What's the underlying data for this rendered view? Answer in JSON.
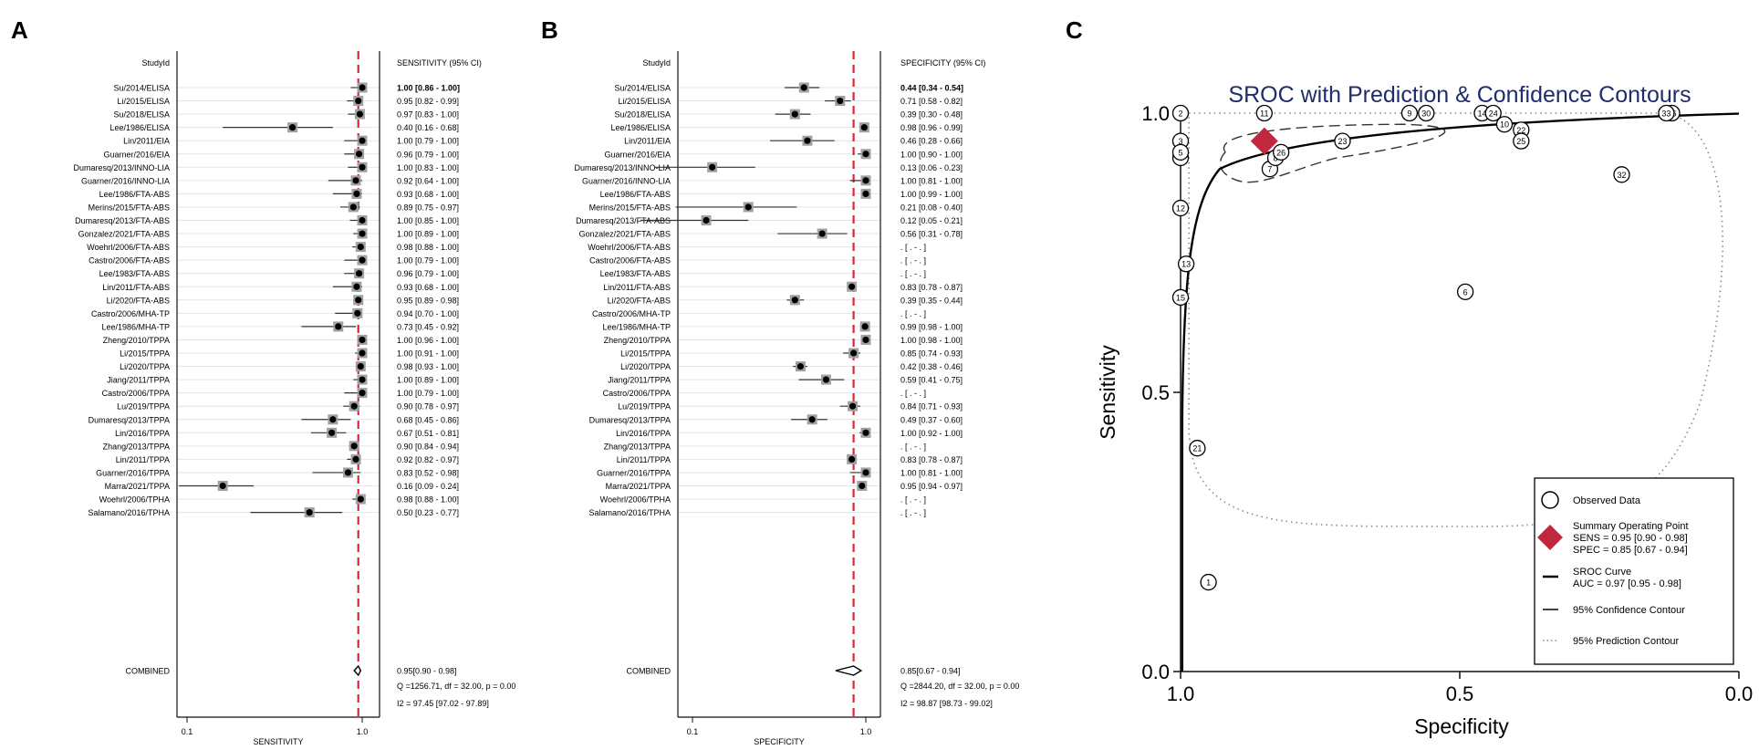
{
  "chart_data": [
    {
      "panel": "A",
      "type": "forest",
      "scale": "log",
      "xlabel": "SENSITIVITY",
      "column_header": "StudyId",
      "value_header": "SENSITIVITY (95% CI)",
      "x_ticks": [
        {
          "value": 0.1,
          "label": "0.1"
        },
        {
          "value": 1.0,
          "label": "1.0"
        }
      ],
      "summary_line": 0.95,
      "studies": [
        {
          "label": "Su/2014/ELISA",
          "est": 1.0,
          "lo": 0.86,
          "hi": 1.0,
          "text": "1.00 [0.86 - 1.00]"
        },
        {
          "label": "Li/2015/ELISA",
          "est": 0.95,
          "lo": 0.82,
          "hi": 0.99,
          "text": "0.95 [0.82 - 0.99]"
        },
        {
          "label": "Su/2018/ELISA",
          "est": 0.97,
          "lo": 0.83,
          "hi": 1.0,
          "text": "0.97 [0.83 - 1.00]"
        },
        {
          "label": "Lee/1986/ELISA",
          "est": 0.4,
          "lo": 0.16,
          "hi": 0.68,
          "text": "0.40 [0.16 - 0.68]"
        },
        {
          "label": "Lin/2011/EIA",
          "est": 1.0,
          "lo": 0.79,
          "hi": 1.0,
          "text": "1.00 [0.79 - 1.00]"
        },
        {
          "label": "Guarner/2016/EIA",
          "est": 0.96,
          "lo": 0.79,
          "hi": 1.0,
          "text": "0.96 [0.79 - 1.00]"
        },
        {
          "label": "Dumaresq/2013/INNO-LIA",
          "est": 1.0,
          "lo": 0.83,
          "hi": 1.0,
          "text": "1.00 [0.83 - 1.00]"
        },
        {
          "label": "Guarner/2016/INNO-LIA",
          "est": 0.92,
          "lo": 0.64,
          "hi": 1.0,
          "text": "0.92 [0.64 - 1.00]"
        },
        {
          "label": "Lee/1986/FTA-ABS",
          "est": 0.93,
          "lo": 0.68,
          "hi": 1.0,
          "text": "0.93 [0.68 - 1.00]"
        },
        {
          "label": "Merins/2015/FTA-ABS",
          "est": 0.89,
          "lo": 0.75,
          "hi": 0.97,
          "text": "0.89 [0.75 - 0.97]"
        },
        {
          "label": "Dumaresq/2013/FTA-ABS",
          "est": 1.0,
          "lo": 0.85,
          "hi": 1.0,
          "text": "1.00 [0.85 - 1.00]"
        },
        {
          "label": "Gonzalez/2021/FTA-ABS",
          "est": 1.0,
          "lo": 0.89,
          "hi": 1.0,
          "text": "1.00 [0.89 - 1.00]"
        },
        {
          "label": "Woehrl/2006/FTA-ABS",
          "est": 0.98,
          "lo": 0.88,
          "hi": 1.0,
          "text": "0.98 [0.88 - 1.00]"
        },
        {
          "label": "Castro/2006/FTA-ABS",
          "est": 1.0,
          "lo": 0.79,
          "hi": 1.0,
          "text": "1.00 [0.79 - 1.00]"
        },
        {
          "label": "Lee/1983/FTA-ABS",
          "est": 0.96,
          "lo": 0.79,
          "hi": 1.0,
          "text": "0.96 [0.79 - 1.00]"
        },
        {
          "label": "Lin/2011/FTA-ABS",
          "est": 0.93,
          "lo": 0.68,
          "hi": 1.0,
          "text": "0.93 [0.68 - 1.00]"
        },
        {
          "label": "Li/2020/FTA-ABS",
          "est": 0.95,
          "lo": 0.89,
          "hi": 0.98,
          "text": "0.95 [0.89 - 0.98]"
        },
        {
          "label": "Castro/2006/MHA-TP",
          "est": 0.94,
          "lo": 0.7,
          "hi": 1.0,
          "text": "0.94 [0.70 - 1.00]"
        },
        {
          "label": "Lee/1986/MHA-TP",
          "est": 0.73,
          "lo": 0.45,
          "hi": 0.92,
          "text": "0.73 [0.45 - 0.92]"
        },
        {
          "label": "Zheng/2010/TPPA",
          "est": 1.0,
          "lo": 0.96,
          "hi": 1.0,
          "text": "1.00 [0.96 - 1.00]"
        },
        {
          "label": "Li/2015/TPPA",
          "est": 1.0,
          "lo": 0.91,
          "hi": 1.0,
          "text": "1.00 [0.91 - 1.00]"
        },
        {
          "label": "Li/2020/TPPA",
          "est": 0.98,
          "lo": 0.93,
          "hi": 1.0,
          "text": "0.98 [0.93 - 1.00]"
        },
        {
          "label": "Jiang/2011/TPPA",
          "est": 1.0,
          "lo": 0.89,
          "hi": 1.0,
          "text": "1.00 [0.89 - 1.00]"
        },
        {
          "label": "Castro/2006/TPPA",
          "est": 1.0,
          "lo": 0.79,
          "hi": 1.0,
          "text": "1.00 [0.79 - 1.00]"
        },
        {
          "label": "Lu/2019/TPPA",
          "est": 0.9,
          "lo": 0.78,
          "hi": 0.97,
          "text": "0.90 [0.78 - 0.97]"
        },
        {
          "label": "Dumaresq/2013/TPPA",
          "est": 0.68,
          "lo": 0.45,
          "hi": 0.86,
          "text": "0.68 [0.45 - 0.86]"
        },
        {
          "label": "Lin/2016/TPPA",
          "est": 0.67,
          "lo": 0.51,
          "hi": 0.81,
          "text": "0.67 [0.51 - 0.81]"
        },
        {
          "label": "Zhang/2013/TPPA",
          "est": 0.9,
          "lo": 0.84,
          "hi": 0.94,
          "text": "0.90 [0.84 - 0.94]"
        },
        {
          "label": "Lin/2011/TPPA",
          "est": 0.92,
          "lo": 0.82,
          "hi": 0.97,
          "text": "0.92 [0.82 - 0.97]"
        },
        {
          "label": "Guarner/2016/TPPA",
          "est": 0.83,
          "lo": 0.52,
          "hi": 0.98,
          "text": "0.83 [0.52 - 0.98]"
        },
        {
          "label": "Marra/2021/TPPA",
          "est": 0.16,
          "lo": 0.09,
          "hi": 0.24,
          "text": "0.16 [0.09 - 0.24]"
        },
        {
          "label": "Woehrl/2006/TPHA",
          "est": 0.98,
          "lo": 0.88,
          "hi": 1.0,
          "text": "0.98 [0.88 - 1.00]"
        },
        {
          "label": "Salamano/2016/TPHA",
          "est": 0.5,
          "lo": 0.23,
          "hi": 0.77,
          "text": "0.50 [0.23 - 0.77]"
        }
      ],
      "combined": {
        "label": "COMBINED",
        "est": 0.95,
        "lo": 0.9,
        "hi": 0.98,
        "text": "0.95[0.90 - 0.98]"
      },
      "stats": [
        "Q =1256.71, df = 32.00, p = 0.00",
        "I2 = 97.45 [97.02 - 97.89]"
      ]
    },
    {
      "panel": "B",
      "type": "forest",
      "scale": "log",
      "xlabel": "SPECIFICITY",
      "column_header": "StudyId",
      "value_header": "SPECIFICITY (95% CI)",
      "x_ticks": [
        {
          "value": 0.1,
          "label": "0.1"
        },
        {
          "value": 1.0,
          "label": "1.0"
        }
      ],
      "summary_line": 0.85,
      "studies": [
        {
          "label": "Su/2014/ELISA",
          "est": 0.44,
          "lo": 0.34,
          "hi": 0.54,
          "text": "0.44 [0.34 - 0.54]"
        },
        {
          "label": "Li/2015/ELISA",
          "est": 0.71,
          "lo": 0.58,
          "hi": 0.82,
          "text": "0.71 [0.58 - 0.82]"
        },
        {
          "label": "Su/2018/ELISA",
          "est": 0.39,
          "lo": 0.3,
          "hi": 0.48,
          "text": "0.39 [0.30 - 0.48]"
        },
        {
          "label": "Lee/1986/ELISA",
          "est": 0.98,
          "lo": 0.96,
          "hi": 0.99,
          "text": "0.98 [0.96 - 0.99]"
        },
        {
          "label": "Lin/2011/EIA",
          "est": 0.46,
          "lo": 0.28,
          "hi": 0.66,
          "text": "0.46 [0.28 - 0.66]"
        },
        {
          "label": "Guarner/2016/EIA",
          "est": 1.0,
          "lo": 0.9,
          "hi": 1.0,
          "text": "1.00 [0.90 - 1.00]"
        },
        {
          "label": "Dumaresq/2013/INNO-LIA",
          "est": 0.13,
          "lo": 0.06,
          "hi": 0.23,
          "text": "0.13 [0.06 - 0.23]"
        },
        {
          "label": "Guarner/2016/INNO-LIA",
          "est": 1.0,
          "lo": 0.81,
          "hi": 1.0,
          "text": "1.00 [0.81 - 1.00]"
        },
        {
          "label": "Lee/1986/FTA-ABS",
          "est": 1.0,
          "lo": 0.99,
          "hi": 1.0,
          "text": "1.00 [0.99 - 1.00]"
        },
        {
          "label": "Merins/2015/FTA-ABS",
          "est": 0.21,
          "lo": 0.08,
          "hi": 0.4,
          "text": "0.21 [0.08 - 0.40]"
        },
        {
          "label": "Dumaresq/2013/FTA-ABS",
          "est": 0.12,
          "lo": 0.05,
          "hi": 0.21,
          "text": "0.12 [0.05 - 0.21]"
        },
        {
          "label": "Gonzalez/2021/FTA-ABS",
          "est": 0.56,
          "lo": 0.31,
          "hi": 0.78,
          "text": "0.56 [0.31 - 0.78]"
        },
        {
          "label": "Woehrl/2006/FTA-ABS",
          "est": null,
          "text": ". [ . - . ]"
        },
        {
          "label": "Castro/2006/FTA-ABS",
          "est": null,
          "text": ". [ . - . ]"
        },
        {
          "label": "Lee/1983/FTA-ABS",
          "est": null,
          "text": ". [ . - . ]"
        },
        {
          "label": "Lin/2011/FTA-ABS",
          "est": 0.83,
          "lo": 0.78,
          "hi": 0.87,
          "text": "0.83 [0.78 - 0.87]"
        },
        {
          "label": "Li/2020/FTA-ABS",
          "est": 0.39,
          "lo": 0.35,
          "hi": 0.44,
          "text": "0.39 [0.35 - 0.44]"
        },
        {
          "label": "Castro/2006/MHA-TP",
          "est": null,
          "text": ". [ . - . ]"
        },
        {
          "label": "Lee/1986/MHA-TP",
          "est": 0.99,
          "lo": 0.98,
          "hi": 1.0,
          "text": "0.99 [0.98 - 1.00]"
        },
        {
          "label": "Zheng/2010/TPPA",
          "est": 1.0,
          "lo": 0.98,
          "hi": 1.0,
          "text": "1.00 [0.98 - 1.00]"
        },
        {
          "label": "Li/2015/TPPA",
          "est": 0.85,
          "lo": 0.74,
          "hi": 0.93,
          "text": "0.85 [0.74 - 0.93]"
        },
        {
          "label": "Li/2020/TPPA",
          "est": 0.42,
          "lo": 0.38,
          "hi": 0.46,
          "text": "0.42 [0.38 - 0.46]"
        },
        {
          "label": "Jiang/2011/TPPA",
          "est": 0.59,
          "lo": 0.41,
          "hi": 0.75,
          "text": "0.59 [0.41 - 0.75]"
        },
        {
          "label": "Castro/2006/TPPA",
          "est": null,
          "text": ". [ . - . ]"
        },
        {
          "label": "Lu/2019/TPPA",
          "est": 0.84,
          "lo": 0.71,
          "hi": 0.93,
          "text": "0.84 [0.71 - 0.93]"
        },
        {
          "label": "Dumaresq/2013/TPPA",
          "est": 0.49,
          "lo": 0.37,
          "hi": 0.6,
          "text": "0.49 [0.37 - 0.60]"
        },
        {
          "label": "Lin/2016/TPPA",
          "est": 1.0,
          "lo": 0.92,
          "hi": 1.0,
          "text": "1.00 [0.92 - 1.00]"
        },
        {
          "label": "Zhang/2013/TPPA",
          "est": null,
          "text": ". [ . - . ]"
        },
        {
          "label": "Lin/2011/TPPA",
          "est": 0.83,
          "lo": 0.78,
          "hi": 0.87,
          "text": "0.83 [0.78 - 0.87]"
        },
        {
          "label": "Guarner/2016/TPPA",
          "est": 1.0,
          "lo": 0.81,
          "hi": 1.0,
          "text": "1.00 [0.81 - 1.00]"
        },
        {
          "label": "Marra/2021/TPPA",
          "est": 0.95,
          "lo": 0.94,
          "hi": 0.97,
          "text": "0.95 [0.94 - 0.97]"
        },
        {
          "label": "Woehrl/2006/TPHA",
          "est": null,
          "text": ". [ . - . ]"
        },
        {
          "label": "Salamano/2016/TPHA",
          "est": null,
          "text": ". [ . - . ]"
        }
      ],
      "combined": {
        "label": "COMBINED",
        "est": 0.85,
        "lo": 0.67,
        "hi": 0.94,
        "text": "0.85[0.67 - 0.94]"
      },
      "stats": [
        "Q =2844.20, df = 32.00, p = 0.00",
        "I2 = 98.87 [98.73 - 99.02]"
      ]
    },
    {
      "panel": "C",
      "type": "scatter",
      "title": "SROC with Prediction & Confidence Contours",
      "xlabel": "Specificity",
      "ylabel": "Sensitivity",
      "xlim": [
        1.0,
        0.0
      ],
      "ylim": [
        0.0,
        1.0
      ],
      "x_ticks": [
        "1.0",
        "0.5",
        "0.0"
      ],
      "y_ticks": [
        "0.0",
        "0.5",
        "1.0"
      ],
      "points": [
        {
          "id": "1",
          "spec": 0.95,
          "sens": 0.16
        },
        {
          "id": "2",
          "spec": 1.0,
          "sens": 1.0
        },
        {
          "id": "3",
          "spec": 1.0,
          "sens": 0.95
        },
        {
          "id": "4",
          "spec": 1.0,
          "sens": 0.92
        },
        {
          "id": "5",
          "spec": 1.0,
          "sens": 0.93
        },
        {
          "id": "6",
          "spec": 0.49,
          "sens": 0.68
        },
        {
          "id": "7",
          "spec": 0.84,
          "sens": 0.9
        },
        {
          "id": "8",
          "spec": 0.83,
          "sens": 0.92
        },
        {
          "id": "9",
          "spec": 0.59,
          "sens": 1.0
        },
        {
          "id": "10",
          "spec": 0.42,
          "sens": 0.98
        },
        {
          "id": "11",
          "spec": 0.85,
          "sens": 1.0
        },
        {
          "id": "12",
          "spec": 1.0,
          "sens": 0.83
        },
        {
          "id": "13",
          "spec": 0.99,
          "sens": 0.73
        },
        {
          "id": "14",
          "spec": 0.46,
          "sens": 1.0
        },
        {
          "id": "15",
          "spec": 1.0,
          "sens": 0.67
        },
        {
          "id": "16",
          "spec": 0.12,
          "sens": 1.0
        },
        {
          "id": "21",
          "spec": 0.97,
          "sens": 0.4
        },
        {
          "id": "22",
          "spec": 0.39,
          "sens": 0.97
        },
        {
          "id": "23",
          "spec": 0.71,
          "sens": 0.95
        },
        {
          "id": "24",
          "spec": 0.44,
          "sens": 1.0
        },
        {
          "id": "25",
          "spec": 0.39,
          "sens": 0.95
        },
        {
          "id": "26",
          "spec": 0.82,
          "sens": 0.93
        },
        {
          "id": "30",
          "spec": 0.56,
          "sens": 1.0
        },
        {
          "id": "32",
          "spec": 0.21,
          "sens": 0.89
        },
        {
          "id": "33",
          "spec": 0.13,
          "sens": 1.0
        }
      ],
      "summary_point": {
        "sens": 0.95,
        "spec": 0.85
      },
      "legend": [
        {
          "label": "Observed Data"
        },
        {
          "label": "Summary Operating Point",
          "detail": [
            "SENS = 0.95 [0.90 - 0.98]",
            "SPEC = 0.85 [0.67 - 0.94]"
          ]
        },
        {
          "label": "SROC Curve",
          "detail": [
            "AUC = 0.97 [0.95 - 0.98]"
          ]
        },
        {
          "label": "95% Confidence Contour"
        },
        {
          "label": "95% Prediction Contour"
        }
      ],
      "auc": 0.97
    }
  ],
  "panels": {
    "a": "A",
    "b": "B",
    "c": "C"
  },
  "colors": {
    "summary_line": "#d7263d",
    "summary_point": "#c1273d",
    "title": "#1f2d6b",
    "box": "#a0a0a0",
    "ink": "#111111",
    "grid": "#e1e6ee"
  }
}
